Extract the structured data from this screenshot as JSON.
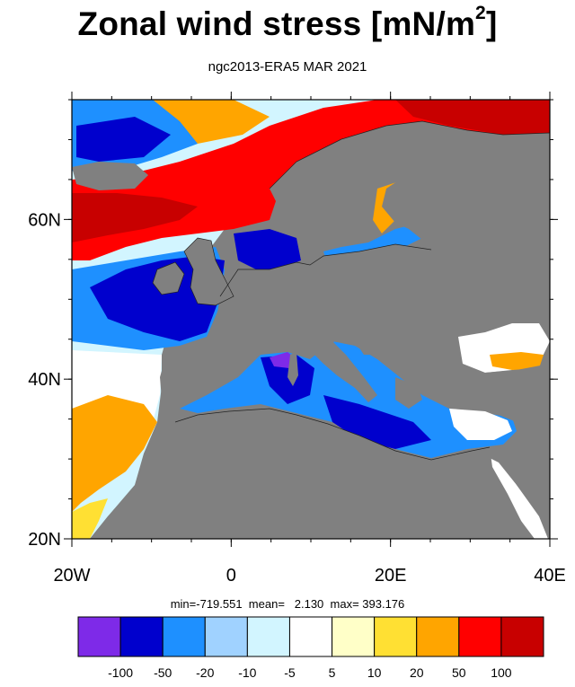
{
  "title": "Zonal wind stress [mN/m",
  "title_sup": "2",
  "title_end": "]",
  "subtitle": "ngc2013-ERA5  MAR 2021",
  "stats_text": "min=-719.551  mean=   2.130  max= 393.176",
  "stats": {
    "min": -719.551,
    "mean": 2.13,
    "max": 393.176
  },
  "map": {
    "projection": "cylindrical equidistant",
    "lon_range": [
      -20,
      40
    ],
    "lat_range": [
      20,
      75
    ],
    "land_color": "#808080",
    "x_ticks": [
      {
        "lon": -20,
        "label": "20W"
      },
      {
        "lon": 0,
        "label": "0"
      },
      {
        "lon": 20,
        "label": "20E"
      },
      {
        "lon": 40,
        "label": "40E"
      }
    ],
    "y_ticks": [
      {
        "lat": 20,
        "label": "20N"
      },
      {
        "lat": 40,
        "label": "40N"
      },
      {
        "lat": 60,
        "label": "60N"
      }
    ]
  },
  "colorbar": {
    "colors": [
      "#7e2ae8",
      "#0000cd",
      "#1e90ff",
      "#a0d2ff",
      "#d2f5ff",
      "#ffffff",
      "#ffffc8",
      "#ffe033",
      "#ffa500",
      "#ff0000",
      "#c80000"
    ],
    "labels": [
      "-100",
      "-50",
      "-20",
      "-10",
      "-5",
      "5",
      "10",
      "20",
      "50",
      "100"
    ]
  }
}
